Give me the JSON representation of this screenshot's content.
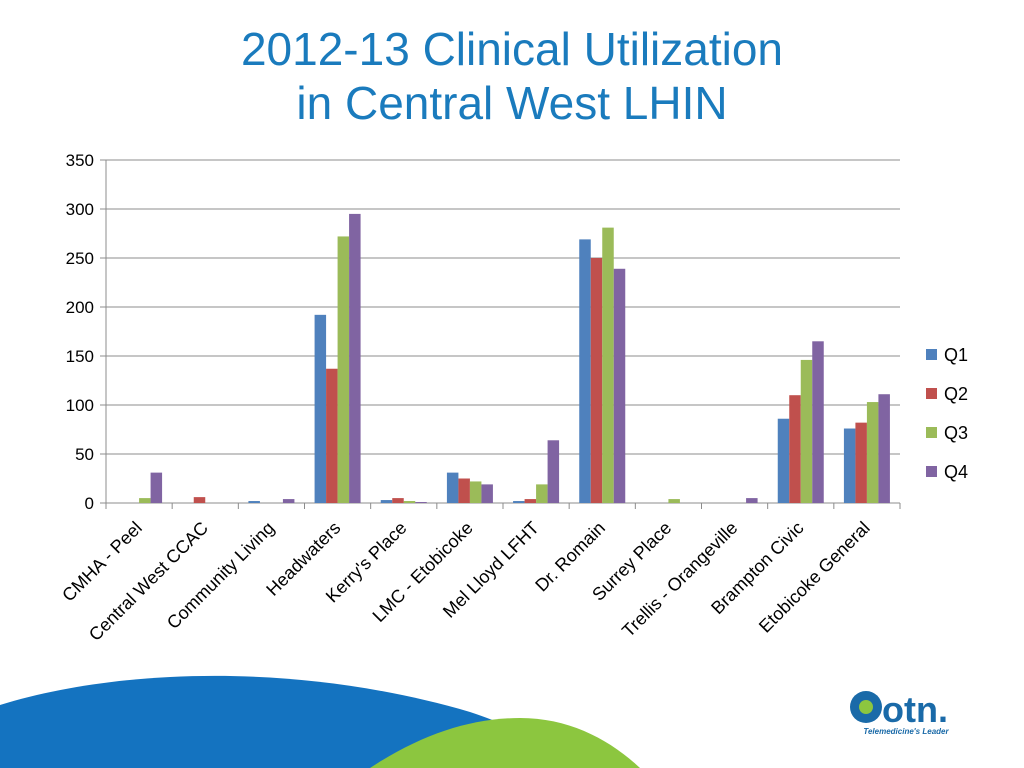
{
  "slide": {
    "title_line1": "2012-13 Clinical Utilization",
    "title_line2": "in Central West LHIN"
  },
  "logo": {
    "wordmark": "otn.",
    "tagline": "Telemedicine's Leader"
  },
  "colors": {
    "title": "#1a7bbd",
    "q1": "#4f81bd",
    "q2": "#c0504d",
    "q3": "#9bbb59",
    "q4": "#8064a2",
    "footer_blue": "#1473c0",
    "footer_green": "#8cc63f"
  },
  "chart_data": {
    "type": "bar",
    "title": "2012-13 Clinical Utilization in Central West LHIN",
    "xlabel": "",
    "ylabel": "",
    "ylim": [
      0,
      350
    ],
    "yticks": [
      0,
      50,
      100,
      150,
      200,
      250,
      300,
      350
    ],
    "grid": true,
    "legend_position": "right",
    "categories": [
      "CMHA - Peel",
      "Central West CCAC",
      "Community Living",
      "Headwaters",
      "Kerry's Place",
      "LMC - Etobicoke",
      "Mel Lloyd LFHT",
      "Dr. Romain",
      "Surrey Place",
      "Trellis - Orangeville",
      "Brampton Civic",
      "Etobicoke General"
    ],
    "series": [
      {
        "name": "Q1",
        "color": "#4f81bd",
        "values": [
          0,
          0,
          2,
          192,
          3,
          31,
          2,
          269,
          0,
          0,
          86,
          76
        ]
      },
      {
        "name": "Q2",
        "color": "#c0504d",
        "values": [
          0,
          6,
          0,
          137,
          5,
          25,
          4,
          250,
          0,
          0,
          110,
          82
        ]
      },
      {
        "name": "Q3",
        "color": "#9bbb59",
        "values": [
          5,
          0,
          0,
          272,
          2,
          22,
          19,
          281,
          4,
          0,
          146,
          103
        ]
      },
      {
        "name": "Q4",
        "color": "#8064a2",
        "values": [
          31,
          0,
          4,
          295,
          1,
          19,
          64,
          239,
          0,
          5,
          165,
          111
        ]
      }
    ]
  }
}
